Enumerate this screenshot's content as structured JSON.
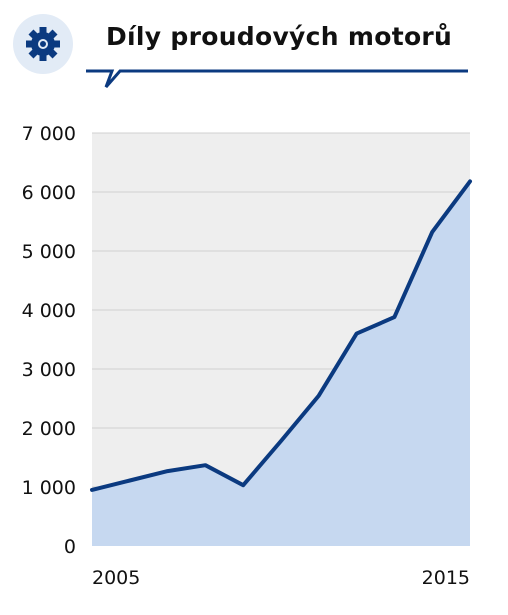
{
  "header": {
    "title": "Díly proudových motorů",
    "icon": "gear-icon"
  },
  "colors": {
    "accent": "#0b3a80",
    "badge_bg": "#e2ebf6",
    "plot_bg": "#eeeeee",
    "area_fill": "#c6d8f0",
    "grid": "#d0d0d0",
    "text": "#111111"
  },
  "chart_data": {
    "type": "area",
    "title": "Díly proudových motorů",
    "xlabel": "",
    "ylabel": "",
    "x": [
      2005,
      2006,
      2007,
      2008,
      2009,
      2010,
      2011,
      2012,
      2013,
      2014,
      2015
    ],
    "values": [
      950,
      1110,
      1270,
      1370,
      1030,
      1780,
      2550,
      3600,
      3880,
      5320,
      6180
    ],
    "ylim": [
      0,
      7000
    ],
    "xlim": [
      2005,
      2015
    ],
    "y_ticks": [
      0,
      1000,
      2000,
      3000,
      4000,
      5000,
      6000,
      7000
    ],
    "y_tick_labels": [
      "0",
      "1 000",
      "2 000",
      "3 000",
      "4 000",
      "5 000",
      "6 000",
      "7 000"
    ],
    "x_tick_labels": [
      "2005",
      "2015"
    ],
    "grid": true,
    "legend": "none"
  }
}
